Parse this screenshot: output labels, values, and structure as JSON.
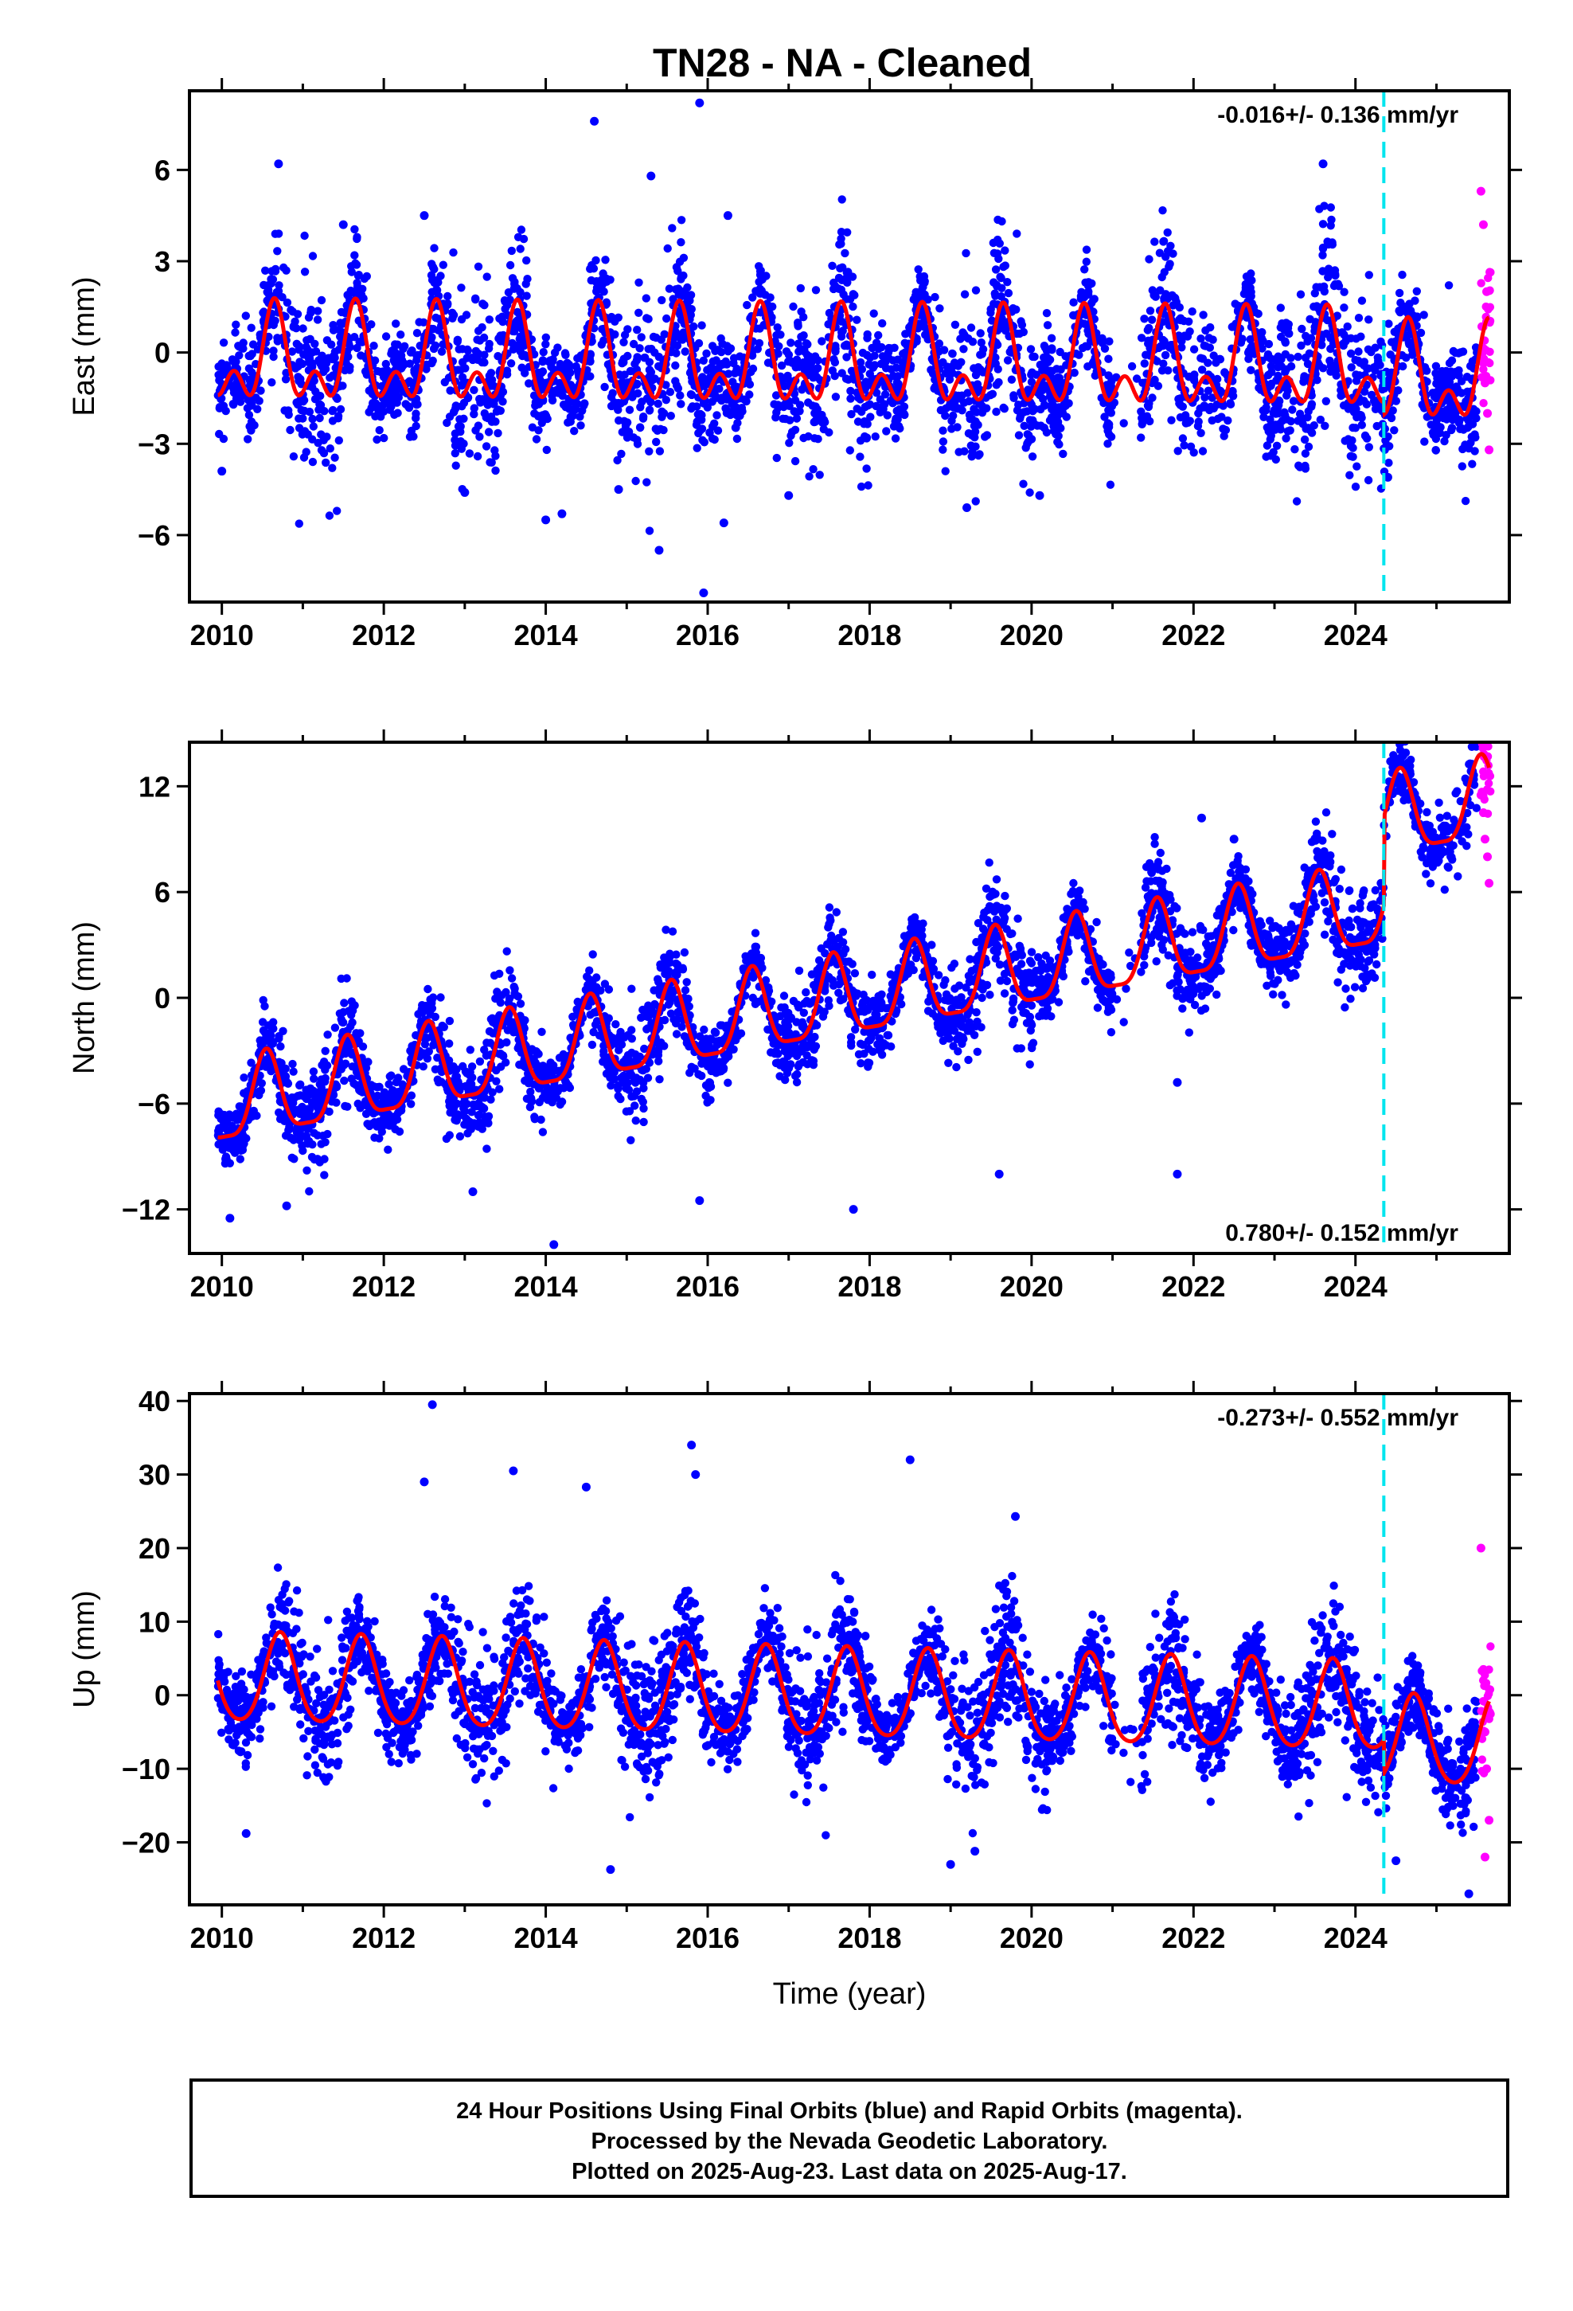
{
  "title": "TN28  - NA - Cleaned",
  "colors": {
    "final_orbits": "#0000ff",
    "rapid_orbits": "#ff00ff",
    "model": "#ff0000",
    "event_line": "#00e5ee",
    "frame": "#000000"
  },
  "chart_data": [
    {
      "type": "scatter",
      "component": "east",
      "ylabel": "East (mm)",
      "xlim": [
        2009.6,
        2025.9
      ],
      "ylim": [
        -8.2,
        8.6
      ],
      "xticks": [
        2010,
        2012,
        2014,
        2016,
        2018,
        2020,
        2022,
        2024
      ],
      "yticks": [
        -6,
        -3,
        0,
        3,
        6
      ],
      "rate_label": "-0.016+/- 0.136 mm/yr",
      "rate_position": "top-right",
      "event_line_x": 2024.35,
      "series": [
        {
          "role": "final_orbits",
          "color": "#0000ff",
          "marker": "dot",
          "x": [
            2010.0,
            2010.7,
            2011.5,
            2012.5,
            2013.0,
            2014.0,
            2014.2,
            2014.6,
            2014.9,
            2015.3,
            2015.4,
            2015.9,
            2015.95,
            2016.2,
            2016.25,
            2017.0,
            2019.2,
            2020.1,
            2023.6,
            2024.4
          ],
          "y": [
            -3.9,
            6.2,
            4.2,
            4.5,
            -4.6,
            -5.5,
            -5.3,
            7.6,
            -4.5,
            5.8,
            -6.5,
            8.2,
            -7.9,
            -5.6,
            4.5,
            -4.7,
            -5.1,
            -4.7,
            6.2,
            -4.1
          ]
        },
        {
          "role": "rapid_orbits",
          "color": "#ff00ff",
          "marker": "dot",
          "x": [
            2025.55,
            2025.58,
            2025.62,
            2025.6,
            2025.63,
            2025.65
          ],
          "y": [
            5.3,
            4.2,
            2.0,
            -1.0,
            -2.0,
            -3.2
          ]
        },
        {
          "role": "model",
          "color": "#ff0000",
          "type": "line",
          "trend_mm": -0.3,
          "rate_mm_yr": -0.016,
          "annual_amp": 1.2,
          "annual_peak": 0.65,
          "semiannual_amp": 0.9,
          "semiannual_peak": 0.65,
          "offsets": [
            {
              "x": 2024.35,
              "dy": -0.4
            }
          ]
        }
      ]
    },
    {
      "type": "scatter",
      "component": "north",
      "ylabel": "North (mm)",
      "xlim": [
        2009.6,
        2025.9
      ],
      "ylim": [
        -14.5,
        14.5
      ],
      "xticks": [
        2010,
        2012,
        2014,
        2016,
        2018,
        2020,
        2022,
        2024
      ],
      "yticks": [
        -12,
        -6,
        0,
        6,
        12
      ],
      "rate_label": "0.780+/- 0.152 mm/yr",
      "rate_position": "bottom-right",
      "event_line_x": 2024.35,
      "series": [
        {
          "role": "final_orbits",
          "color": "#0000ff",
          "marker": "dot",
          "x": [
            2010.1,
            2010.8,
            2013.1,
            2014.1,
            2015.9,
            2017.8,
            2019.6,
            2021.8,
            2021.8,
            2022.1,
            2022.5,
            2024.55
          ],
          "y": [
            -12.5,
            -11.8,
            -11.0,
            -14.0,
            -11.5,
            -12.0,
            -10.0,
            -4.8,
            -10.0,
            10.2,
            9.0,
            13.5
          ]
        },
        {
          "role": "rapid_orbits",
          "color": "#ff00ff",
          "marker": "dot",
          "x": [
            2025.55,
            2025.58,
            2025.6,
            2025.63,
            2025.65
          ],
          "y": [
            11.5,
            10.5,
            9.0,
            8.0,
            6.5
          ]
        },
        {
          "role": "model",
          "color": "#ff0000",
          "type": "line",
          "trend_mm": -6.2,
          "rate_mm_yr": 0.78,
          "annual_amp": 2.3,
          "annual_peak": 0.55,
          "semiannual_amp": 0.6,
          "semiannual_peak": 0.55,
          "offsets": [
            {
              "x": 2024.35,
              "dy": 5.0
            }
          ]
        }
      ]
    },
    {
      "type": "scatter",
      "component": "up",
      "ylabel": "Up (mm)",
      "xlabel": "Time (year)",
      "xlim": [
        2009.6,
        2025.9
      ],
      "ylim": [
        -28.5,
        41
      ],
      "xticks": [
        2010,
        2012,
        2014,
        2016,
        2018,
        2020,
        2022,
        2024
      ],
      "yticks": [
        -20,
        -10,
        0,
        10,
        20,
        30,
        40
      ],
      "rate_label": "-0.273+/- 0.552 mm/yr",
      "rate_position": "top-right",
      "event_line_x": 2024.35,
      "series": [
        {
          "role": "final_orbits",
          "color": "#0000ff",
          "marker": "dot",
          "x": [
            2010.3,
            2012.5,
            2012.6,
            2013.6,
            2014.5,
            2014.8,
            2015.8,
            2015.85,
            2018.5,
            2019.0,
            2019.8,
            2019.3,
            2024.5,
            2025.4
          ],
          "y": [
            -18.8,
            29.0,
            39.5,
            30.5,
            28.3,
            -23.7,
            34.0,
            30.0,
            32.0,
            -23.0,
            24.3,
            -21.2,
            -22.5,
            -27.0
          ]
        },
        {
          "role": "rapid_orbits",
          "color": "#ff00ff",
          "marker": "dot",
          "x": [
            2025.55,
            2025.58,
            2025.6,
            2025.62,
            2025.65,
            2025.6
          ],
          "y": [
            20.0,
            3.5,
            -5.0,
            -10.0,
            -17.0,
            -22.0
          ]
        },
        {
          "role": "model",
          "color": "#ff0000",
          "type": "line",
          "trend_mm": 2.0,
          "rate_mm_yr": -0.273,
          "annual_amp": 6.0,
          "annual_peak": 0.72,
          "semiannual_amp": 0.8,
          "semiannual_peak": 0.72,
          "offsets": [
            {
              "x": 2024.35,
              "dy": -4.5
            }
          ]
        }
      ]
    }
  ],
  "footer": {
    "line1": "24 Hour Positions Using Final Orbits (blue) and Rapid Orbits (magenta).",
    "line2": "Processed by the Nevada Geodetic Laboratory.",
    "line3": "Plotted on 2025-Aug-23. Last data on 2025-Aug-17."
  }
}
